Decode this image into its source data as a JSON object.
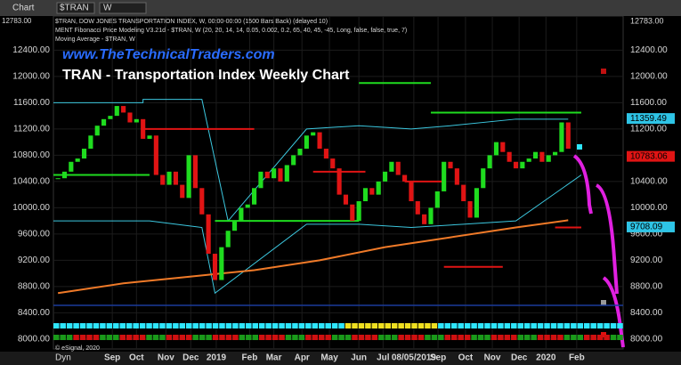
{
  "chart_data": {
    "type": "candlestick",
    "window_tab": "Chart",
    "symbol": "$TRAN",
    "interval": "W",
    "corner_price": {
      "value": 12783,
      "label": "12783.00"
    },
    "header_lines": [
      "$TRAN, DOW JONES TRANSPORTATION INDEX, W, 00:00-00:00 (1500 Bars Back) (delayed 10)",
      "MENT Fibonacci Price Modeling V3.21d - $TRAN, W (20, 20, 14, 14, 0.05, 0.002, 0.2, 65, 40, 45, -45, Long, false, false, true, 7)",
      "Moving Average - $TRAN, W"
    ],
    "website": "www.TheTechnicalTraders.com",
    "title": "TRAN - Transportation Index Weekly Chart",
    "footer_left": "Dyn",
    "copyright": "© eSignal, 2020",
    "up_color": "#1fdc1f",
    "down_color": "#e01414",
    "close": [
      10450,
      10550,
      10700,
      10750,
      10900,
      11100,
      11250,
      11350,
      11400,
      11550,
      11450,
      11300,
      11350,
      11050,
      11100,
      10500,
      10350,
      10550,
      10350,
      10150,
      10800,
      10300,
      9900,
      9300,
      8900,
      9400,
      9650,
      9800,
      10000,
      10050,
      10300,
      10550,
      10450,
      10600,
      10400,
      10650,
      10800,
      10900,
      11100,
      11150,
      10900,
      10750,
      10600,
      10200,
      10050,
      9800,
      10100,
      10300,
      10200,
      10400,
      10550,
      10700,
      10500,
      10400,
      10100,
      9900,
      9750,
      10000,
      10250,
      10700,
      10600,
      10350,
      10100,
      9850,
      10300,
      10600,
      10800,
      11000,
      10850,
      10700,
      10600,
      10700,
      10750,
      10850,
      10700,
      10800,
      10850,
      11300,
      10900
    ],
    "moving_average": {
      "color": "#f07a28",
      "x": [
        0,
        10,
        20,
        30,
        40,
        50,
        60,
        70,
        78
      ],
      "values": [
        8700,
        8850,
        8950,
        9050,
        9200,
        9400,
        9550,
        9700,
        9810
      ]
    },
    "levels": [
      {
        "x": [
          -0.7,
          14
        ],
        "value": 10500,
        "color": "#1fdc1f"
      },
      {
        "x": [
          13,
          30
        ],
        "value": 11200,
        "color": "#e01414"
      },
      {
        "x": [
          24,
          46
        ],
        "value": 9800,
        "color": "#1fdc1f"
      },
      {
        "x": [
          39,
          47
        ],
        "value": 10550,
        "color": "#e01414"
      },
      {
        "x": [
          46,
          57
        ],
        "value": 11900,
        "color": "#1fdc1f"
      },
      {
        "x": [
          53,
          59
        ],
        "value": 10400,
        "color": "#e01414"
      },
      {
        "x": [
          57,
          80
        ],
        "value": 11450,
        "color": "#1fdc1f"
      },
      {
        "x": [
          59,
          68
        ],
        "value": 9100,
        "color": "#e01414"
      },
      {
        "x": [
          76,
          80
        ],
        "value": 9700,
        "color": "#e01414"
      }
    ],
    "channel": {
      "color": "#3cc8e0",
      "upper_x": [
        -0.7,
        13,
        13,
        22,
        26,
        38,
        46,
        54,
        60,
        70,
        78
      ],
      "upper": [
        11600,
        11600,
        11650,
        11650,
        9800,
        11200,
        11250,
        11200,
        11250,
        11350,
        11350
      ],
      "lower_x": [
        -0.7,
        13,
        14,
        22,
        24,
        38,
        46,
        54,
        62,
        70,
        80
      ],
      "lower": [
        9800,
        9800,
        9800,
        9700,
        8700,
        9750,
        9750,
        9700,
        9750,
        9800,
        10500
      ]
    },
    "price_tags": [
      {
        "value": 11359.49,
        "color": "#2ec4e6"
      },
      {
        "value": 10783.06,
        "color": "#e01414"
      },
      {
        "value": 9709.92,
        "color": "#f07a28"
      },
      {
        "value": 9708.09,
        "color": "#2ec4e6"
      }
    ],
    "xlim": [
      -0.7,
      86.4
    ],
    "xticks": [
      {
        "value": 8.3,
        "label": "Sep"
      },
      {
        "value": 12,
        "label": "Oct"
      },
      {
        "value": 16.5,
        "label": "Nov"
      },
      {
        "value": 20.3,
        "label": "Dec"
      },
      {
        "value": 24.2,
        "label": "2019"
      },
      {
        "value": 29.3,
        "label": "Feb"
      },
      {
        "value": 33,
        "label": "Mar"
      },
      {
        "value": 37.3,
        "label": "Apr"
      },
      {
        "value": 41.5,
        "label": "May"
      },
      {
        "value": 46,
        "label": "Jun"
      },
      {
        "value": 49.7,
        "label": "Jul"
      },
      {
        "value": 54.4,
        "label": "08/05/2019"
      },
      {
        "value": 58.1,
        "label": "Sep"
      },
      {
        "value": 62.3,
        "label": "Oct"
      },
      {
        "value": 66.4,
        "label": "Nov"
      },
      {
        "value": 70.5,
        "label": "Dec"
      },
      {
        "value": 74.6,
        "label": "2020"
      },
      {
        "value": 79.3,
        "label": "Feb"
      }
    ],
    "ylim": [
      7850,
      12920
    ],
    "yticks": [
      {
        "value": 8000,
        "label": "8000.00"
      },
      {
        "value": 8400,
        "label": "8400.00"
      },
      {
        "value": 8800,
        "label": "8800.00"
      },
      {
        "value": 9200,
        "label": "9200.00"
      },
      {
        "value": 9600,
        "label": "9600.00"
      },
      {
        "value": 10000,
        "label": "10000.00"
      },
      {
        "value": 10400,
        "label": "10400.00"
      },
      {
        "value": 10800,
        "label": "10800.00"
      },
      {
        "value": 11200,
        "label": "11200.00"
      },
      {
        "value": 11600,
        "label": "11600.00"
      },
      {
        "value": 12000,
        "label": "12000.00"
      },
      {
        "value": 12400,
        "label": "12400.00"
      }
    ],
    "grid": true
  }
}
